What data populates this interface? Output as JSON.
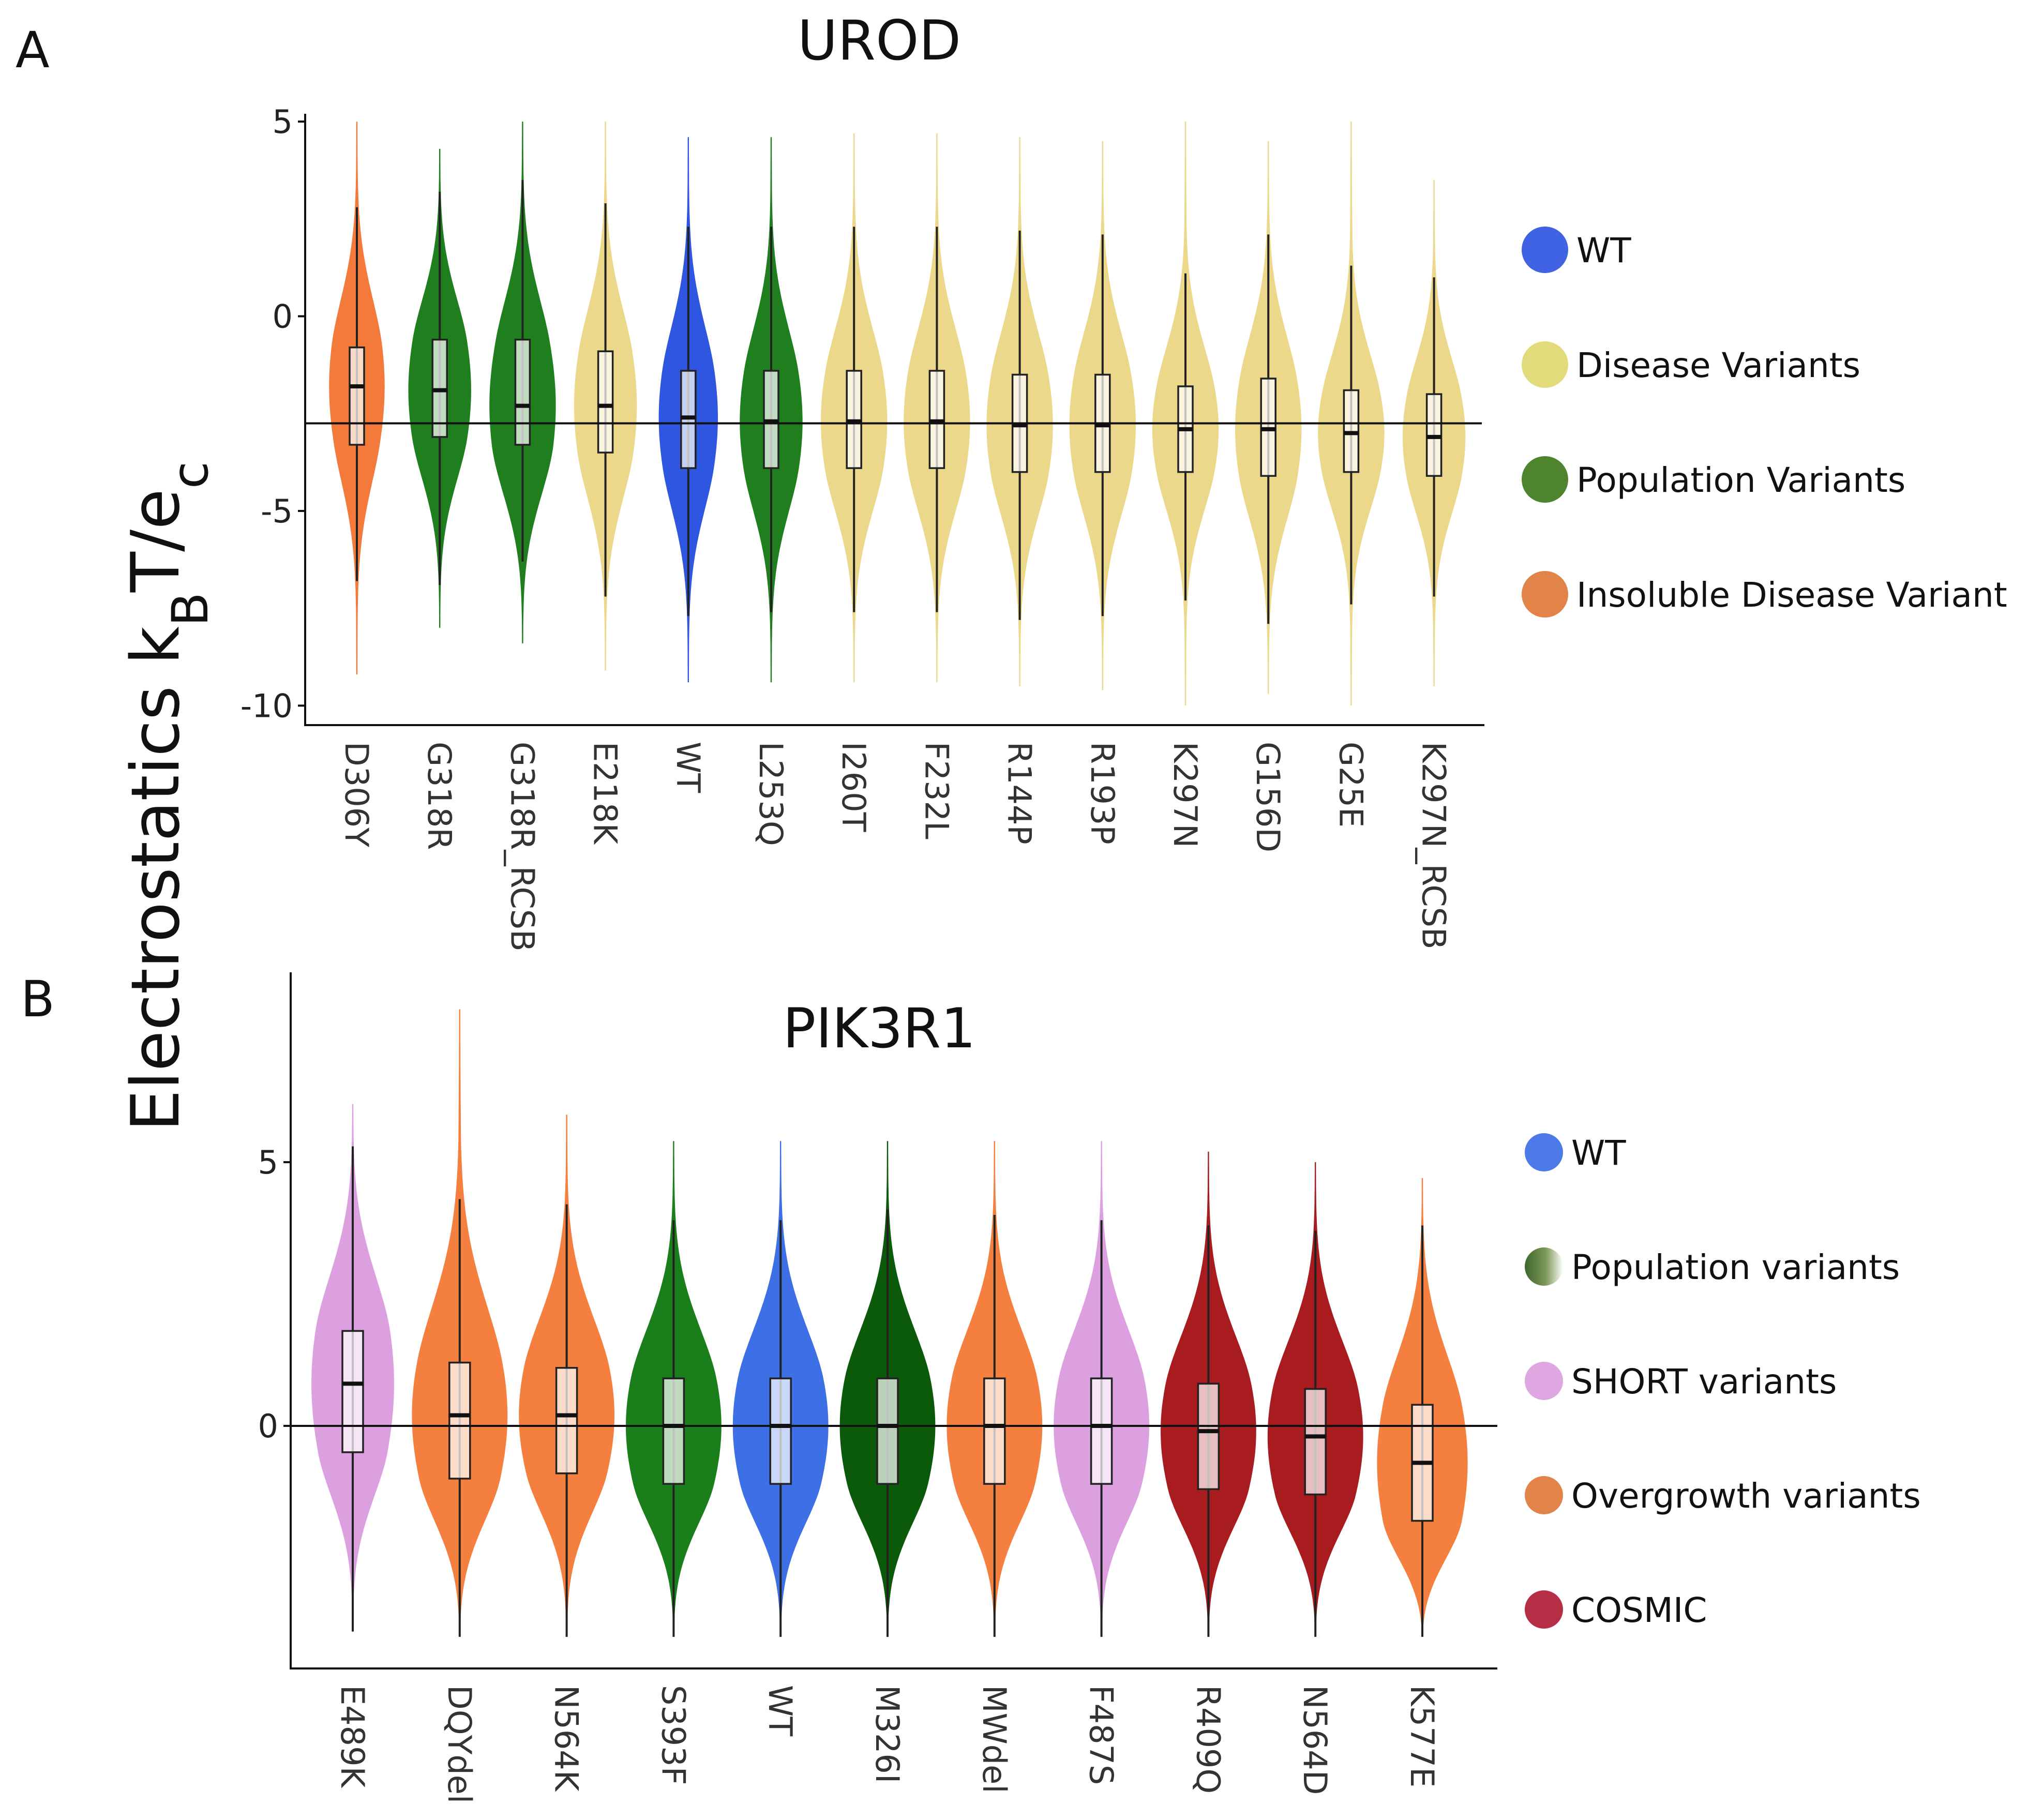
{
  "ylabel": {
    "main": "Electrostatics k",
    "sub1": "B",
    "mid": "T/e",
    "sub2": "c"
  },
  "colors": {
    "wt_a": "#2f56e0",
    "disease_a": "#ecd88a",
    "population_a": "#1f7f1f",
    "insoluble_a": "#f47a3b",
    "wt_b": "#3d6fe6",
    "population_b": "#1a7f1a",
    "population_b_dark": "#0a5a0a",
    "short_b": "#dca0e0",
    "overgrowth_b": "#f57f3e",
    "cosmic_b": "#a81c20"
  },
  "chart_data": [
    {
      "type": "violin",
      "panel": "A",
      "title": "UROD",
      "ylim": [
        -10.5,
        5.2
      ],
      "yticks": [
        5,
        0,
        -5,
        -10
      ],
      "ytick_labels": [
        "5",
        "0",
        "-5",
        "-10"
      ],
      "hline": -2.75,
      "legend": [
        {
          "label": "WT",
          "color": "#2f56e0"
        },
        {
          "label": "Disease Variants",
          "color": "#e0d870"
        },
        {
          "label": "Population Variants",
          "color": "#3f7a1c"
        },
        {
          "label": "Insoluble Disease Variant",
          "color": "#e07a3a"
        }
      ],
      "groups": [
        {
          "name": "D306Y",
          "group": "Insoluble Disease Variant",
          "color": "#f47a3b",
          "min": -9.2,
          "max": 5.0,
          "whisker_low": -6.8,
          "whisker_high": 2.8,
          "q1": -3.3,
          "median": -1.8,
          "q3": -0.8,
          "width": 0.75
        },
        {
          "name": "G318R",
          "group": "Population Variants",
          "color": "#1f7f1f",
          "min": -8.0,
          "max": 4.3,
          "whisker_low": -6.9,
          "whisker_high": 3.2,
          "q1": -3.1,
          "median": -1.9,
          "q3": -0.6,
          "width": 0.85
        },
        {
          "name": "G318R_RCSB",
          "group": "Population Variants",
          "color": "#1f7f1f",
          "min": -8.4,
          "max": 5.0,
          "whisker_low": -6.3,
          "whisker_high": 3.5,
          "q1": -3.3,
          "median": -2.3,
          "q3": -0.6,
          "width": 0.9
        },
        {
          "name": "E218K",
          "group": "Disease Variants",
          "color": "#ecd88a",
          "min": -9.1,
          "max": 5.0,
          "whisker_low": -7.2,
          "whisker_high": 2.9,
          "q1": -3.5,
          "median": -2.3,
          "q3": -0.9,
          "width": 0.85
        },
        {
          "name": "WT",
          "group": "WT",
          "color": "#2f56e0",
          "min": -9.4,
          "max": 4.6,
          "whisker_low": -7.7,
          "whisker_high": 2.3,
          "q1": -3.9,
          "median": -2.6,
          "q3": -1.4,
          "width": 0.8
        },
        {
          "name": "L253Q",
          "group": "Population Variants",
          "color": "#1f7f1f",
          "min": -9.4,
          "max": 4.6,
          "whisker_low": -7.6,
          "whisker_high": 2.3,
          "q1": -3.9,
          "median": -2.7,
          "q3": -1.4,
          "width": 0.85
        },
        {
          "name": "I260T",
          "group": "Disease Variants",
          "color": "#ecd88a",
          "min": -9.4,
          "max": 4.7,
          "whisker_low": -7.6,
          "whisker_high": 2.3,
          "q1": -3.9,
          "median": -2.7,
          "q3": -1.4,
          "width": 0.9
        },
        {
          "name": "F232L",
          "group": "Disease Variants",
          "color": "#ecd88a",
          "min": -9.4,
          "max": 4.7,
          "whisker_low": -7.6,
          "whisker_high": 2.3,
          "q1": -3.9,
          "median": -2.7,
          "q3": -1.4,
          "width": 0.9
        },
        {
          "name": "R144P",
          "group": "Disease Variants",
          "color": "#ecd88a",
          "min": -9.5,
          "max": 4.6,
          "whisker_low": -7.8,
          "whisker_high": 2.2,
          "q1": -4.0,
          "median": -2.8,
          "q3": -1.5,
          "width": 0.9
        },
        {
          "name": "R193P",
          "group": "Disease Variants",
          "color": "#ecd88a",
          "min": -9.6,
          "max": 4.5,
          "whisker_low": -7.7,
          "whisker_high": 2.1,
          "q1": -4.0,
          "median": -2.8,
          "q3": -1.5,
          "width": 0.9
        },
        {
          "name": "K297N",
          "group": "Disease Variants",
          "color": "#ecd88a",
          "min": -10.0,
          "max": 5.0,
          "whisker_low": -7.3,
          "whisker_high": 1.1,
          "q1": -4.0,
          "median": -2.9,
          "q3": -1.8,
          "width": 0.9
        },
        {
          "name": "G156D",
          "group": "Disease Variants",
          "color": "#ecd88a",
          "min": -9.7,
          "max": 4.5,
          "whisker_low": -7.9,
          "whisker_high": 2.1,
          "q1": -4.1,
          "median": -2.9,
          "q3": -1.6,
          "width": 0.9
        },
        {
          "name": "G25E",
          "group": "Disease Variants",
          "color": "#ecd88a",
          "min": -10.0,
          "max": 5.0,
          "whisker_low": -7.4,
          "whisker_high": 1.3,
          "q1": -4.0,
          "median": -3.0,
          "q3": -1.9,
          "width": 0.9
        },
        {
          "name": "K297N_RCSB",
          "group": "Disease Variants",
          "color": "#ecd88a",
          "min": -9.5,
          "max": 3.5,
          "whisker_low": -7.2,
          "whisker_high": 1.0,
          "q1": -4.1,
          "median": -3.1,
          "q3": -2.0,
          "width": 0.85
        }
      ]
    },
    {
      "type": "violin",
      "panel": "B",
      "title": "PIK3R1",
      "ylim": [
        -4.6,
        8.6
      ],
      "yticks": [
        5,
        0
      ],
      "ytick_labels": [
        "5",
        "0"
      ],
      "hline": 0,
      "legend": [
        {
          "label": "WT",
          "color": "#3d6fe6"
        },
        {
          "label": "Population variants",
          "color": "#2f5a1a",
          "gradient": true
        },
        {
          "label": "SHORT variants",
          "color": "#dca0e0"
        },
        {
          "label": "Overgrowth variants",
          "color": "#e07a3a"
        },
        {
          "label": "COSMIC",
          "color": "#b01c36"
        }
      ],
      "groups": [
        {
          "name": "E489K",
          "group": "SHORT variants",
          "color": "#dca0e0",
          "min": -3.7,
          "max": 6.1,
          "whisker_low": -3.9,
          "whisker_high": 5.3,
          "q1": -0.5,
          "median": 0.8,
          "q3": 1.8,
          "width": 0.82
        },
        {
          "name": "DQYdel",
          "group": "Overgrowth variants",
          "color": "#f57f3e",
          "min": -4.0,
          "max": 7.9,
          "whisker_low": -4.0,
          "whisker_high": 4.3,
          "q1": -1.0,
          "median": 0.2,
          "q3": 1.2,
          "width": 0.95
        },
        {
          "name": "N564K",
          "group": "Overgrowth variants",
          "color": "#f57f3e",
          "min": -4.0,
          "max": 5.9,
          "whisker_low": -4.0,
          "whisker_high": 4.2,
          "q1": -0.9,
          "median": 0.2,
          "q3": 1.1,
          "width": 0.95
        },
        {
          "name": "S393F",
          "group": "Population variants",
          "color": "#1a7f1a",
          "min": -4.0,
          "max": 5.4,
          "whisker_low": -4.0,
          "whisker_high": 3.9,
          "q1": -1.1,
          "median": 0.0,
          "q3": 0.9,
          "width": 0.95
        },
        {
          "name": "WT",
          "group": "WT",
          "color": "#3d6fe6",
          "min": -4.0,
          "max": 5.4,
          "whisker_low": -4.0,
          "whisker_high": 3.9,
          "q1": -1.1,
          "median": 0.0,
          "q3": 0.9,
          "width": 0.95
        },
        {
          "name": "M326I",
          "group": "Population variants",
          "color": "#0a5a0a",
          "min": -4.0,
          "max": 5.4,
          "whisker_low": -4.0,
          "whisker_high": 4.1,
          "q1": -1.1,
          "median": 0.0,
          "q3": 0.9,
          "width": 0.95
        },
        {
          "name": "MWdel",
          "group": "Overgrowth variants",
          "color": "#f57f3e",
          "min": -4.0,
          "max": 5.4,
          "whisker_low": -4.0,
          "whisker_high": 4.0,
          "q1": -1.1,
          "median": 0.0,
          "q3": 0.9,
          "width": 0.95
        },
        {
          "name": "F487S",
          "group": "SHORT variants",
          "color": "#dca0e0",
          "min": -4.0,
          "max": 5.4,
          "whisker_low": -4.0,
          "whisker_high": 3.9,
          "q1": -1.1,
          "median": 0.0,
          "q3": 0.9,
          "width": 0.95
        },
        {
          "name": "R409Q",
          "group": "COSMIC",
          "color": "#a81c20",
          "min": -4.0,
          "max": 5.2,
          "whisker_low": -4.0,
          "whisker_high": 3.8,
          "q1": -1.2,
          "median": -0.1,
          "q3": 0.8,
          "width": 0.95
        },
        {
          "name": "N564D",
          "group": "COSMIC",
          "color": "#a81c20",
          "min": -4.0,
          "max": 5.0,
          "whisker_low": -4.0,
          "whisker_high": 3.7,
          "q1": -1.3,
          "median": -0.2,
          "q3": 0.7,
          "width": 0.95
        },
        {
          "name": "K577E",
          "group": "Overgrowth variants",
          "color": "#f57f3e",
          "min": -4.0,
          "max": 4.7,
          "whisker_low": -4.0,
          "whisker_high": 3.8,
          "q1": -1.8,
          "median": -0.7,
          "q3": 0.4,
          "width": 0.9
        }
      ]
    }
  ]
}
